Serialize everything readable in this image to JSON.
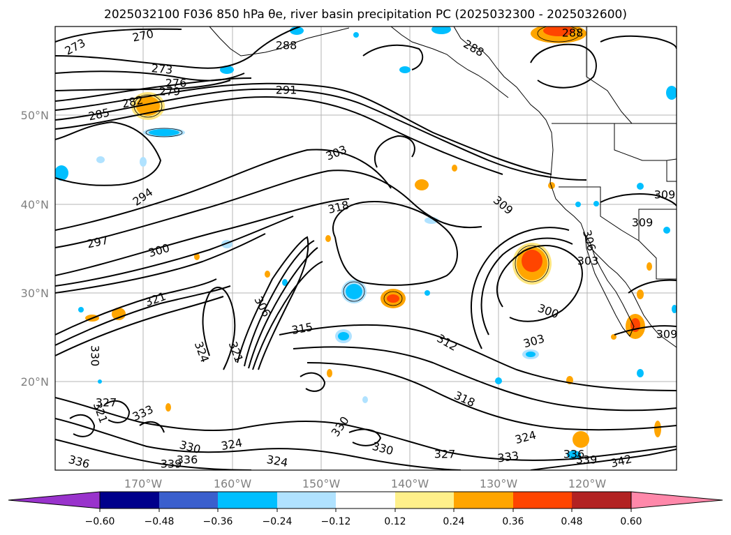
{
  "title": "2025032100 F036 850 hPa θe, river basin precipitation PC (2025032300 - 2025032600)",
  "map": {
    "lat_labels": [
      "50°N",
      "40°N",
      "30°N",
      "20°N"
    ],
    "lon_labels": [
      "170°W",
      "160°W",
      "150°W",
      "140°W",
      "130°W",
      "120°W"
    ],
    "contour_labels": [
      {
        "text": "273"
      },
      {
        "text": "270"
      },
      {
        "text": "273"
      },
      {
        "text": "276"
      },
      {
        "text": "279"
      },
      {
        "text": "282"
      },
      {
        "text": "285"
      },
      {
        "text": "291"
      },
      {
        "text": "294"
      },
      {
        "text": "297"
      },
      {
        "text": "300"
      },
      {
        "text": "303"
      },
      {
        "text": "309"
      },
      {
        "text": "318"
      },
      {
        "text": "321"
      },
      {
        "text": "306"
      },
      {
        "text": "315"
      },
      {
        "text": "312"
      },
      {
        "text": "300"
      },
      {
        "text": "303"
      },
      {
        "text": "318"
      },
      {
        "text": "330"
      },
      {
        "text": "324"
      },
      {
        "text": "333"
      },
      {
        "text": "330"
      },
      {
        "text": "336"
      },
      {
        "text": "330"
      },
      {
        "text": "327"
      },
      {
        "text": "333"
      },
      {
        "text": "324"
      },
      {
        "text": "336"
      },
      {
        "text": "339"
      },
      {
        "text": "342"
      },
      {
        "text": "324"
      },
      {
        "text": "321"
      },
      {
        "text": "330"
      },
      {
        "text": "336"
      },
      {
        "text": "339"
      },
      {
        "text": "324"
      },
      {
        "text": "327"
      },
      {
        "text": "306"
      },
      {
        "text": "309"
      },
      {
        "text": "309"
      },
      {
        "text": "288"
      },
      {
        "text": "288"
      },
      {
        "text": "288"
      },
      {
        "text": "321"
      },
      {
        "text": "303"
      },
      {
        "text": "309"
      }
    ]
  },
  "colorbar": {
    "colors": [
      "#9933cc",
      "#00008b",
      "#3a5fcd",
      "#00bfff",
      "#b0e2ff",
      "#ffffff",
      "#fff08a",
      "#ffa500",
      "#ff4500",
      "#b22222",
      "#ff88aa"
    ],
    "tick_labels": [
      "−0.60",
      "−0.48",
      "−0.36",
      "−0.24",
      "−0.12",
      "0.12",
      "0.24",
      "0.36",
      "0.48",
      "0.60"
    ]
  }
}
